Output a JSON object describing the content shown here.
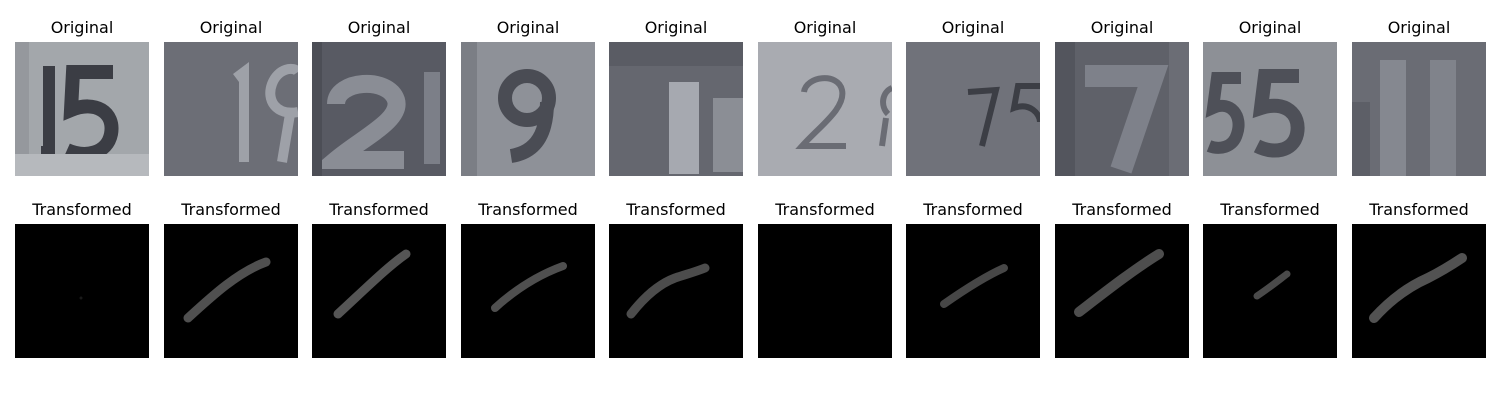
{
  "rows": [
    {
      "title": "Original",
      "images": [
        {
          "depicted_digits": "15",
          "bg": "#a3a7ab",
          "fg": "#3b3d44"
        },
        {
          "depicted_digits": "19",
          "bg": "#6c6e76",
          "fg": "#9ea1a8"
        },
        {
          "depicted_digits": "21",
          "bg": "#585a63",
          "fg": "#8a8d95"
        },
        {
          "depicted_digits": "9",
          "bg": "#8e9198",
          "fg": "#4a4c54"
        },
        {
          "depicted_digits": "15",
          "bg": "#65676f",
          "fg": "#a6a9b0"
        },
        {
          "depicted_digits": "2",
          "bg": "#a9abb1",
          "fg": "#6a6c74"
        },
        {
          "depicted_digits": "75",
          "bg": "#75777f",
          "fg": "#3c3e45"
        },
        {
          "depicted_digits": "7",
          "bg": "#5f6169",
          "fg": "#7e818a"
        },
        {
          "depicted_digits": "55",
          "bg": "#8d9096",
          "fg": "#4e5058"
        },
        {
          "depicted_digits": "11",
          "bg": "#6a6c74",
          "fg": "#858890"
        }
      ]
    },
    {
      "title": "Transformed",
      "images": [
        {
          "stroke": "none"
        },
        {
          "stroke": "#505050"
        },
        {
          "stroke": "#555555"
        },
        {
          "stroke": "#4f4f4f"
        },
        {
          "stroke": "#4c4c4c"
        },
        {
          "stroke": "none"
        },
        {
          "stroke": "#474747"
        },
        {
          "stroke": "#4e4e4e"
        },
        {
          "stroke": "#4a4a4a"
        },
        {
          "stroke": "#525252"
        }
      ]
    }
  ]
}
